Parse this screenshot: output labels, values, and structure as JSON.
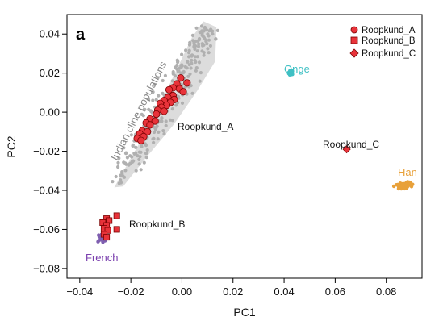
{
  "chart_data": {
    "type": "scatter",
    "panel_label": "a",
    "xlabel": "PC1",
    "ylabel": "PC2",
    "xlim": [
      -0.045,
      0.094
    ],
    "ylim": [
      -0.085,
      0.05
    ],
    "xticks": [
      -0.04,
      -0.02,
      0.0,
      0.02,
      0.04,
      0.06,
      0.08
    ],
    "xtick_labels": [
      "−0.04",
      "−0.02",
      "0.00",
      "0.02",
      "0.04",
      "0.06",
      "0.08"
    ],
    "yticks": [
      -0.08,
      -0.06,
      -0.04,
      -0.02,
      0.0,
      0.02,
      0.04
    ],
    "ytick_labels": [
      "−0.08",
      "−0.06",
      "−0.04",
      "−0.02",
      "0.00",
      "0.02",
      "0.04"
    ],
    "grid": false,
    "legend_position": "top-right",
    "legend": [
      {
        "label": "Roopkund_A",
        "marker": "circle"
      },
      {
        "label": "Roopkund_B",
        "marker": "square"
      },
      {
        "label": "Roopkund_C",
        "marker": "diamond"
      }
    ],
    "annotations": {
      "cline": "Indian cline populations",
      "roopkund_a": "Roopkund_A",
      "roopkund_b": "Roopkund_B",
      "roopkund_c": "Roopkund_C",
      "onge": "Onge",
      "han": "Han",
      "french": "French"
    },
    "colors": {
      "roopkund": "#e8333a",
      "roopkund_edge": "#7a0000",
      "cline_points": "#b0b0b0",
      "cline_hull": "#dcdcdc",
      "onge": "#3fc0c4",
      "han": "#e8a13a",
      "french": "#7f5fb0",
      "french_text": "#7a3fae"
    },
    "series": [
      {
        "name": "Roopkund_A",
        "marker": "circle",
        "points": [
          [
            -0.0005,
            0.0175
          ],
          [
            0.002,
            0.015
          ],
          [
            -0.002,
            0.0145
          ],
          [
            -0.0035,
            0.0125
          ],
          [
            -0.005,
            0.0115
          ],
          [
            -0.001,
            0.012
          ],
          [
            0.0005,
            0.0105
          ],
          [
            -0.0035,
            0.0085
          ],
          [
            -0.0055,
            0.0075
          ],
          [
            -0.003,
            0.0065
          ],
          [
            -0.007,
            0.006
          ],
          [
            -0.0045,
            0.005
          ],
          [
            -0.0085,
            0.0045
          ],
          [
            -0.006,
            0.0035
          ],
          [
            -0.008,
            0.0025
          ],
          [
            -0.0095,
            0.001
          ],
          [
            -0.007,
            0.0005
          ],
          [
            -0.01,
            -0.001
          ],
          [
            -0.0125,
            -0.0035
          ],
          [
            -0.0105,
            -0.0045
          ],
          [
            -0.014,
            -0.0055
          ],
          [
            -0.0125,
            -0.0065
          ],
          [
            -0.0155,
            -0.0095
          ],
          [
            -0.0135,
            -0.01
          ],
          [
            -0.0165,
            -0.011
          ],
          [
            -0.015,
            -0.0125
          ],
          [
            -0.0175,
            -0.0135
          ],
          [
            -0.016,
            -0.0145
          ]
        ]
      },
      {
        "name": "Roopkund_B",
        "marker": "square",
        "points": [
          [
            -0.0295,
            -0.0545
          ],
          [
            -0.0285,
            -0.0555
          ],
          [
            -0.031,
            -0.0565
          ],
          [
            -0.0295,
            -0.058
          ],
          [
            -0.0305,
            -0.0595
          ],
          [
            -0.029,
            -0.0605
          ],
          [
            -0.0305,
            -0.0625
          ],
          [
            -0.0295,
            -0.064
          ],
          [
            -0.0255,
            -0.053
          ],
          [
            -0.0255,
            -0.06
          ]
        ]
      },
      {
        "name": "Roopkund_C",
        "marker": "diamond",
        "points": [
          [
            0.0645,
            -0.019
          ]
        ]
      }
    ]
  }
}
